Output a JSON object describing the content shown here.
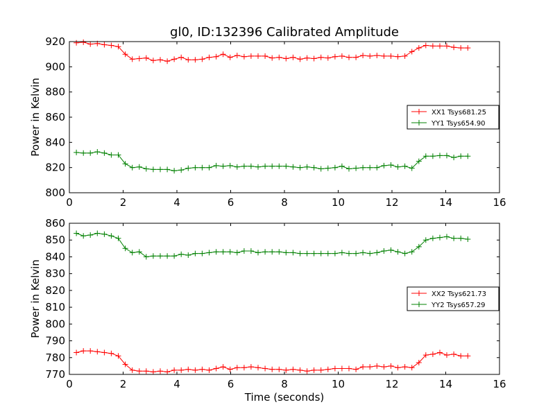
{
  "figure": {
    "title": "gl0, ID:132396 Calibrated Amplitude"
  },
  "chart_data": [
    {
      "type": "line",
      "title": "gl0, ID:132396 Calibrated Amplitude",
      "xlabel": "",
      "ylabel": "Power in Kelvin",
      "xlim": [
        0,
        16
      ],
      "ylim": [
        800,
        920
      ],
      "xticks": [
        0,
        2,
        4,
        6,
        8,
        10,
        12,
        14,
        16
      ],
      "yticks": [
        800,
        820,
        840,
        860,
        880,
        900,
        920
      ],
      "grid": false,
      "legend_position": "center-right",
      "x": [
        0.26,
        0.52,
        0.78,
        1.04,
        1.3,
        1.56,
        1.82,
        2.08,
        2.34,
        2.6,
        2.86,
        3.12,
        3.38,
        3.64,
        3.9,
        4.16,
        4.42,
        4.68,
        4.94,
        5.2,
        5.46,
        5.72,
        5.98,
        6.24,
        6.5,
        6.76,
        7.02,
        7.28,
        7.54,
        7.8,
        8.06,
        8.32,
        8.58,
        8.84,
        9.1,
        9.36,
        9.62,
        9.88,
        10.14,
        10.4,
        10.66,
        10.92,
        11.18,
        11.44,
        11.7,
        11.96,
        12.22,
        12.48,
        12.74,
        13.0,
        13.26,
        13.52,
        13.78,
        14.04,
        14.3,
        14.56,
        14.82
      ],
      "series": [
        {
          "name": "XX1 Tsys681.25",
          "color": "#ff0000",
          "values": [
            919,
            919.5,
            918,
            918.5,
            917.5,
            917,
            916,
            910,
            906,
            906.5,
            907,
            905,
            905.5,
            904.5,
            906,
            907.5,
            905.5,
            905.5,
            906,
            907.5,
            908,
            910,
            907.5,
            909,
            908,
            908.5,
            908.5,
            908.5,
            907,
            907.5,
            906.5,
            907.5,
            906,
            907,
            906.5,
            907.5,
            907,
            908,
            908.5,
            907.5,
            907.5,
            909,
            908.5,
            909,
            908.5,
            908.5,
            908,
            908.5,
            912,
            915,
            917,
            916.5,
            916.5,
            916.5,
            915.5,
            915,
            915
          ]
        },
        {
          "name": "YY1 Tsys654.90",
          "color": "#008000",
          "values": [
            832,
            831.5,
            831.5,
            832.5,
            831.5,
            830,
            830,
            823,
            820,
            820.5,
            819,
            818.5,
            818.5,
            818.5,
            817.5,
            818,
            819.5,
            820,
            820,
            820,
            821.5,
            821,
            821.5,
            820.5,
            821,
            821,
            820.5,
            821,
            821,
            821,
            821,
            820.5,
            820,
            820.5,
            820,
            819,
            819.5,
            820,
            821,
            819,
            819.5,
            820,
            820,
            820,
            821.5,
            822,
            820.5,
            821,
            819.5,
            825,
            829,
            829,
            829.5,
            829.5,
            828,
            829,
            829
          ]
        }
      ]
    },
    {
      "type": "line",
      "title": "",
      "xlabel": "Time (seconds)",
      "ylabel": "Power in Kelvin",
      "xlim": [
        0,
        16
      ],
      "ylim": [
        770,
        860
      ],
      "xticks": [
        0,
        2,
        4,
        6,
        8,
        10,
        12,
        14,
        16
      ],
      "yticks": [
        770,
        780,
        790,
        800,
        810,
        820,
        830,
        840,
        850,
        860
      ],
      "grid": false,
      "legend_position": "center-right",
      "x": [
        0.26,
        0.52,
        0.78,
        1.04,
        1.3,
        1.56,
        1.82,
        2.08,
        2.34,
        2.6,
        2.86,
        3.12,
        3.38,
        3.64,
        3.9,
        4.16,
        4.42,
        4.68,
        4.94,
        5.2,
        5.46,
        5.72,
        5.98,
        6.24,
        6.5,
        6.76,
        7.02,
        7.28,
        7.54,
        7.8,
        8.06,
        8.32,
        8.58,
        8.84,
        9.1,
        9.36,
        9.62,
        9.88,
        10.14,
        10.4,
        10.66,
        10.92,
        11.18,
        11.44,
        11.7,
        11.96,
        12.22,
        12.48,
        12.74,
        13.0,
        13.26,
        13.52,
        13.78,
        14.04,
        14.3,
        14.56,
        14.82
      ],
      "series": [
        {
          "name": "XX2 Tsys621.73",
          "color": "#ff0000",
          "values": [
            783,
            784,
            784,
            783.5,
            783,
            782.5,
            781,
            776,
            772.5,
            772,
            772,
            771.5,
            772,
            771.5,
            772.5,
            772.5,
            773,
            772.5,
            773,
            772.5,
            773.5,
            774.5,
            773,
            774,
            774,
            774.5,
            774,
            773.5,
            773,
            773,
            772.5,
            773,
            772.5,
            772,
            772.5,
            772.5,
            773,
            773.5,
            773.5,
            773.5,
            773,
            774.5,
            774.5,
            775,
            774.5,
            775,
            774,
            774.5,
            774,
            777,
            781.5,
            782,
            783,
            781.5,
            782,
            781,
            781
          ]
        },
        {
          "name": "YY2 Tsys657.29",
          "color": "#008000",
          "values": [
            854,
            852.5,
            853,
            854,
            853.5,
            852.5,
            851,
            845,
            842.5,
            843,
            840,
            840.5,
            840.5,
            840.5,
            840.5,
            841.5,
            841,
            842,
            842,
            842.5,
            843,
            843,
            843,
            842.5,
            843.5,
            843.5,
            842.5,
            843,
            843,
            843,
            842.5,
            842.5,
            842,
            842,
            842,
            842,
            842,
            842,
            842.5,
            842,
            842,
            842.5,
            842,
            842.5,
            843.5,
            844,
            843,
            842,
            843,
            846,
            850,
            851,
            851.5,
            852,
            851,
            851,
            850.5
          ]
        }
      ]
    }
  ]
}
